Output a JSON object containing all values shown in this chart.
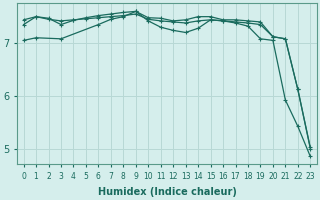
{
  "xlabel": "Humidex (Indice chaleur)",
  "bg_color": "#d5eeec",
  "grid_color": "#b8d8d5",
  "line_color": "#1a6b5e",
  "xlim": [
    -0.5,
    23.5
  ],
  "ylim": [
    4.7,
    7.75
  ],
  "yticks": [
    5,
    6,
    7
  ],
  "xticks": [
    0,
    1,
    2,
    3,
    4,
    5,
    6,
    7,
    8,
    9,
    10,
    11,
    12,
    13,
    14,
    15,
    16,
    17,
    18,
    19,
    20,
    21,
    22,
    23
  ],
  "series1_x": [
    0,
    1,
    2,
    3,
    4,
    5,
    6,
    7,
    8,
    9,
    10,
    11,
    12,
    13,
    14,
    15,
    16,
    17,
    18,
    19,
    20,
    21,
    22,
    23
  ],
  "series1_y": [
    7.35,
    7.5,
    7.47,
    7.35,
    7.43,
    7.48,
    7.52,
    7.55,
    7.58,
    7.6,
    7.48,
    7.47,
    7.42,
    7.44,
    7.5,
    7.5,
    7.44,
    7.44,
    7.42,
    7.4,
    7.12,
    7.08,
    6.12,
    5.0
  ],
  "series2_x": [
    0,
    1,
    2,
    3,
    4,
    5,
    6,
    7,
    8,
    9,
    10,
    11,
    12,
    13,
    14,
    15,
    16,
    17,
    18,
    19,
    20,
    21,
    22,
    23
  ],
  "series2_y": [
    7.44,
    7.5,
    7.45,
    7.42,
    7.44,
    7.46,
    7.48,
    7.5,
    7.52,
    7.55,
    7.45,
    7.42,
    7.4,
    7.38,
    7.42,
    7.44,
    7.42,
    7.4,
    7.38,
    7.35,
    7.12,
    7.08,
    6.12,
    5.02
  ],
  "series3_x": [
    0,
    1,
    3,
    6,
    7,
    8,
    9,
    10,
    11,
    12,
    13,
    14,
    15,
    16,
    17,
    18,
    19,
    20,
    21,
    22,
    23
  ],
  "series3_y": [
    7.05,
    7.1,
    7.08,
    7.35,
    7.45,
    7.5,
    7.6,
    7.42,
    7.3,
    7.24,
    7.2,
    7.28,
    7.44,
    7.42,
    7.38,
    7.32,
    7.08,
    7.05,
    5.92,
    5.42,
    4.85
  ]
}
